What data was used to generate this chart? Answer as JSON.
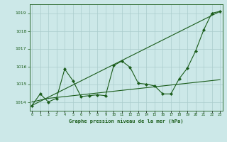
{
  "title": "Graphe pression niveau de la mer (hPa)",
  "background_color": "#cce8e8",
  "grid_color": "#aacccc",
  "line_color": "#1a5c1a",
  "ylim": [
    1013.5,
    1019.5
  ],
  "yticks": [
    1014,
    1015,
    1016,
    1017,
    1018,
    1019
  ],
  "xlim": [
    -0.3,
    23.3
  ],
  "zigzag_x": [
    0,
    1,
    2,
    3,
    4,
    5,
    6,
    7,
    8,
    9,
    10,
    11,
    12,
    13,
    14,
    15,
    16,
    17,
    18,
    19,
    20,
    21,
    22,
    23
  ],
  "zigzag_y": [
    1013.8,
    1014.45,
    1014.0,
    1014.2,
    1015.85,
    1015.2,
    1014.3,
    1014.35,
    1014.4,
    1014.35,
    1016.05,
    1016.3,
    1015.95,
    1015.05,
    1015.0,
    1014.9,
    1014.45,
    1014.45,
    1015.3,
    1015.9,
    1016.85,
    1018.05,
    1019.0,
    1019.1
  ],
  "trend_x": [
    0,
    23
  ],
  "trend_y": [
    1013.8,
    1019.1
  ],
  "smooth_x": [
    0,
    1,
    2,
    3,
    4,
    5,
    6,
    7,
    8,
    9,
    10,
    11,
    12,
    13,
    14,
    15,
    16,
    17,
    18,
    19,
    20,
    21,
    22,
    23
  ],
  "smooth_y": [
    1014.0,
    1014.1,
    1014.2,
    1014.25,
    1014.3,
    1014.35,
    1014.4,
    1014.45,
    1014.5,
    1014.55,
    1014.6,
    1014.65,
    1014.7,
    1014.75,
    1014.8,
    1014.85,
    1014.9,
    1014.95,
    1015.0,
    1015.05,
    1015.1,
    1015.15,
    1015.2,
    1015.25
  ],
  "x_labels": [
    "0",
    "1",
    "2",
    "3",
    "4",
    "5",
    "6",
    "7",
    "8",
    "9",
    "10",
    "11",
    "12",
    "13",
    "14",
    "15",
    "16",
    "17",
    "18",
    "19",
    "20",
    "21",
    "22",
    "23"
  ]
}
